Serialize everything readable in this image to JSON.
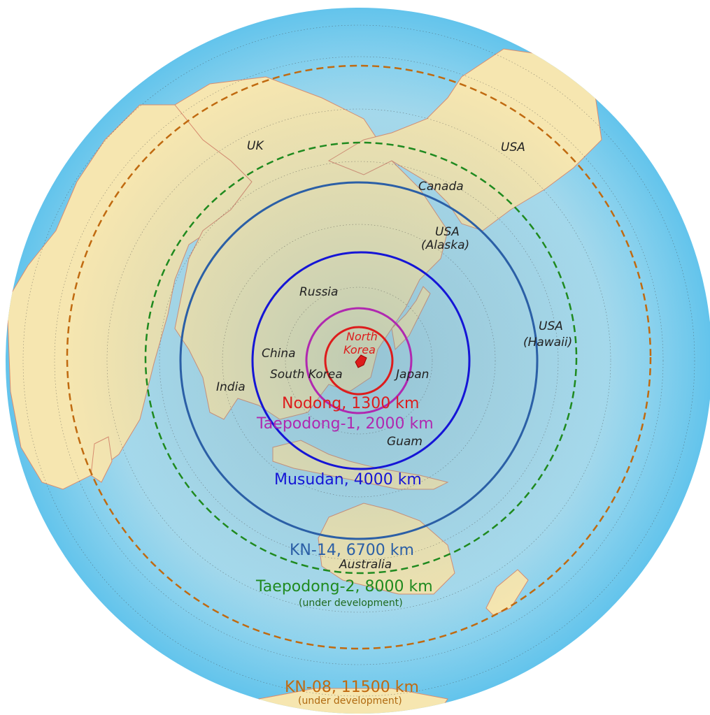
{
  "colors": {
    "ocean": "#9fd8ee",
    "ocean_edge": "#5fc3ec",
    "land": "#f6e6b0",
    "border": "#d98c6e",
    "nodong": "#dd1c1c",
    "taepodong1": "#b028b0",
    "musudan": "#1515d6",
    "kn14": "#2b5fa6",
    "taepodong2": "#1f8a1f",
    "kn08": "#c06a10"
  },
  "countries": {
    "uk": "UK",
    "usa": "USA",
    "canada": "Canada",
    "usa_alaska_1": "USA",
    "usa_alaska_2": "(Alaska)",
    "russia": "Russia",
    "usa_hawaii_1": "USA",
    "usa_hawaii_2": "(Hawaii)",
    "north_korea_1": "North",
    "north_korea_2": "Korea",
    "china": "China",
    "south_korea": "South Korea",
    "japan": "Japan",
    "india": "India",
    "guam": "Guam",
    "australia": "Australia"
  },
  "ranges": [
    {
      "id": "nodong",
      "name": "Nodong",
      "range_km": 1300,
      "label": "Nodong, 1300 km",
      "note": "",
      "line": "solid",
      "color": "#dd1c1c"
    },
    {
      "id": "taepodong1",
      "name": "Taepodong-1",
      "range_km": 2000,
      "label": "Taepodong-1, 2000 km",
      "note": "",
      "line": "solid",
      "color": "#b028b0"
    },
    {
      "id": "musudan",
      "name": "Musudan",
      "range_km": 4000,
      "label": "Musudan, 4000 km",
      "note": "",
      "line": "solid",
      "color": "#1515d6"
    },
    {
      "id": "kn14",
      "name": "KN-14",
      "range_km": 6700,
      "label": "KN-14, 6700 km",
      "note": "",
      "line": "solid",
      "color": "#2b5fa6"
    },
    {
      "id": "taepodong2",
      "name": "Taepodong-2",
      "range_km": 8000,
      "label": "Taepodong-2, 8000 km",
      "note": "(under development)",
      "line": "dashed",
      "color": "#1f8a1f"
    },
    {
      "id": "kn08",
      "name": "KN-08",
      "range_km": 11500,
      "label": "KN-08, 11500 km",
      "note": "(under development)",
      "line": "dashed",
      "color": "#c06a10"
    }
  ]
}
